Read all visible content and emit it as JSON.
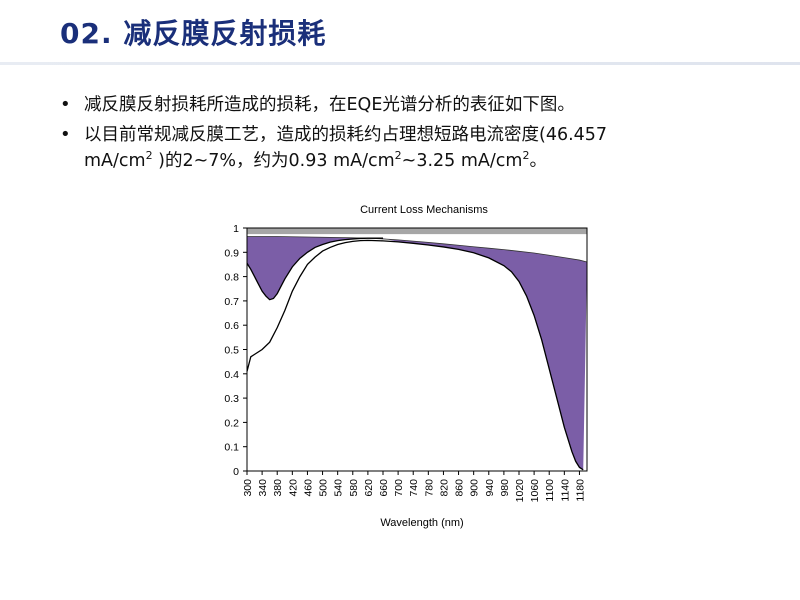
{
  "slide": {
    "title": "02. 减反膜反射损耗",
    "bullets": [
      {
        "text_parts": [
          "减反膜反射损耗所造成的损耗，在EQE光谱分析的表征如下图。"
        ]
      },
      {
        "line1": "以目前常规减反膜工艺，造成的损耗约占理想短路电流密度(46.457",
        "line2_a": "mA/cm",
        "line2_sup1": "2",
        "line2_b": " )的2~7%，约为0.93 mA/cm",
        "line2_sup2": "2",
        "line2_c": "~3.25 mA/cm",
        "line2_sup3": "2",
        "line2_d": "。"
      }
    ]
  },
  "chart_data": {
    "type": "area",
    "title": "Current Loss Mechanisms",
    "xlabel": "Wavelength  (nm)",
    "ylabel": "",
    "xlim": [
      300,
      1200
    ],
    "ylim": [
      0,
      1
    ],
    "x_ticks": [
      300,
      340,
      380,
      420,
      460,
      500,
      540,
      580,
      620,
      660,
      700,
      740,
      780,
      820,
      860,
      900,
      940,
      980,
      1020,
      1060,
      1100,
      1140,
      1180
    ],
    "y_ticks": [
      0,
      0.1,
      0.2,
      0.3,
      0.4,
      0.5,
      0.6,
      0.7,
      0.8,
      0.9,
      1
    ],
    "grid": false,
    "series": [
      {
        "role": "top-band",
        "color": "#a6a6a6",
        "x": [
          300,
          1200
        ],
        "values": [
          0.975,
          0.975
        ]
      },
      {
        "role": "transmitted (1 - reflection)",
        "color": "#7b5ea7",
        "x": [
          300,
          340,
          380,
          420,
          460,
          500,
          540,
          580,
          620,
          660,
          700,
          740,
          780,
          820,
          860,
          900,
          940,
          980,
          1020,
          1060,
          1100,
          1140,
          1180,
          1200
        ],
        "values": [
          0.965,
          0.965,
          0.965,
          0.964,
          0.963,
          0.962,
          0.961,
          0.96,
          0.958,
          0.955,
          0.951,
          0.946,
          0.941,
          0.935,
          0.929,
          0.923,
          0.917,
          0.911,
          0.904,
          0.897,
          0.888,
          0.878,
          0.868,
          0.86
        ]
      },
      {
        "role": "reflection curve",
        "color": "#000000",
        "x": [
          300,
          310,
          320,
          330,
          340,
          350,
          360,
          370,
          380,
          390,
          400,
          420,
          440,
          460,
          480,
          500,
          520,
          540,
          560,
          580,
          600,
          620,
          640,
          660
        ],
        "values": [
          0.855,
          0.83,
          0.8,
          0.77,
          0.74,
          0.72,
          0.705,
          0.71,
          0.73,
          0.76,
          0.79,
          0.84,
          0.875,
          0.9,
          0.92,
          0.932,
          0.942,
          0.948,
          0.952,
          0.955,
          0.957,
          0.958,
          0.958,
          0.958
        ]
      },
      {
        "role": "EQE",
        "color": "#000000",
        "x": [
          300,
          310,
          320,
          340,
          360,
          380,
          400,
          420,
          440,
          460,
          480,
          500,
          520,
          540,
          560,
          580,
          600,
          620,
          640,
          660,
          700,
          740,
          780,
          820,
          860,
          900,
          940,
          980,
          1000,
          1020,
          1040,
          1060,
          1080,
          1100,
          1120,
          1140,
          1160,
          1170,
          1180,
          1190
        ],
        "values": [
          0.41,
          0.47,
          0.48,
          0.5,
          0.53,
          0.59,
          0.66,
          0.74,
          0.8,
          0.85,
          0.88,
          0.905,
          0.92,
          0.932,
          0.94,
          0.945,
          0.948,
          0.949,
          0.948,
          0.947,
          0.943,
          0.937,
          0.93,
          0.922,
          0.912,
          0.898,
          0.877,
          0.845,
          0.82,
          0.78,
          0.72,
          0.64,
          0.54,
          0.42,
          0.3,
          0.18,
          0.08,
          0.04,
          0.015,
          0.005
        ]
      }
    ]
  }
}
